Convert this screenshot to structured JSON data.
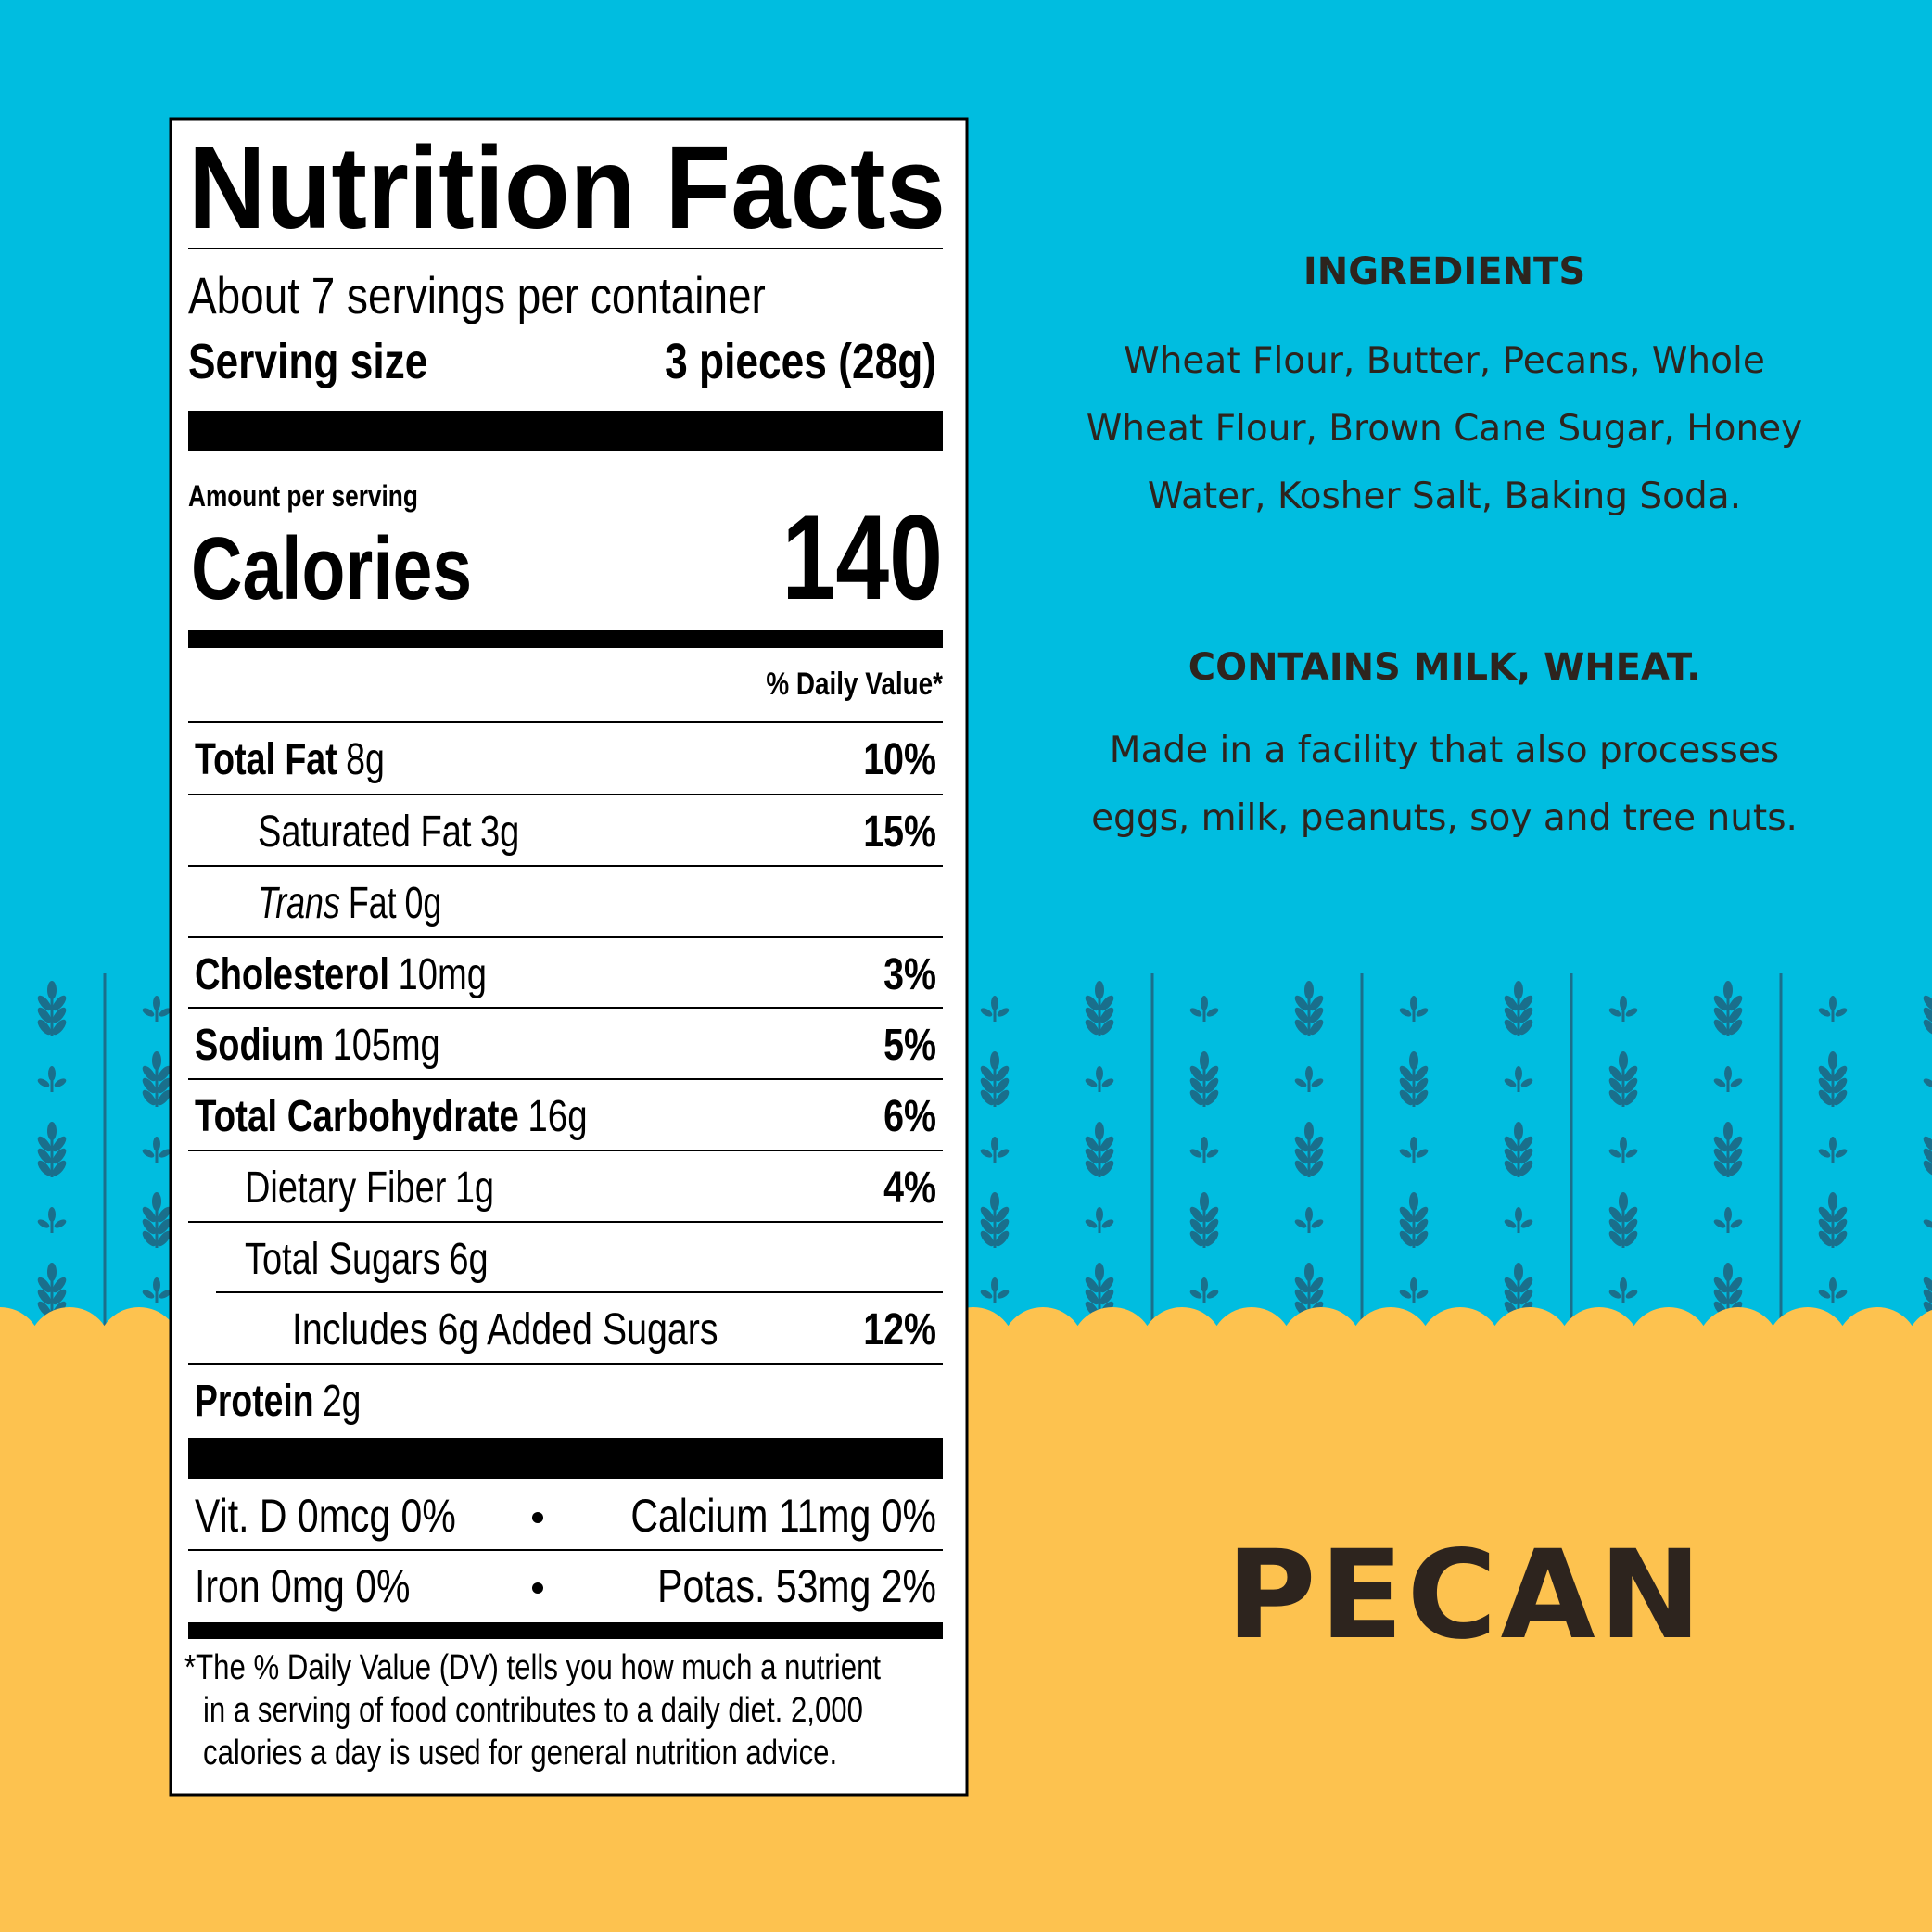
{
  "label": {
    "title": "Nutrition Facts",
    "servings": "About 7 servings per container",
    "serving_size_label": "Serving size",
    "serving_size": "3 pieces (28g)",
    "amount_per_serving": "Amount per serving",
    "calories_label": "Calories",
    "calories": 140,
    "daily_value_header": "% Daily Value*",
    "rows": [
      {
        "name": "Total Fat",
        "amount": "8g",
        "dv": "10%"
      },
      {
        "name": "Saturated Fat",
        "amount": "3g",
        "dv": "15%"
      },
      {
        "name_italic": "Trans",
        "name": "Fat",
        "amount": "0g"
      },
      {
        "name": "Cholesterol",
        "amount": "10mg",
        "dv": "3%"
      },
      {
        "name": "Sodium",
        "amount": "105mg",
        "dv": "5%"
      },
      {
        "name": "Total Carbohydrate",
        "amount": "16g",
        "dv": "6%"
      },
      {
        "name": "Dietary Fiber",
        "amount": "1g",
        "dv": "4%"
      },
      {
        "name": "Total Sugars",
        "amount": "6g"
      },
      {
        "name": "Includes 6g Added Sugars",
        "dv": "12%"
      },
      {
        "name": "Protein",
        "amount": "2g"
      }
    ],
    "vitamins": [
      [
        "Vit. D 0mcg 0%",
        "Calcium 11mg 0%"
      ],
      [
        "Iron 0mg 0%",
        "Potas. 53mg 2%"
      ]
    ],
    "footnote": [
      "*The % Daily Value (DV) tells you how much a nutrient",
      "in a serving of food contributes to a daily diet. 2,000",
      "calories a day is used for general nutrition advice."
    ]
  },
  "ingredients": {
    "heading": "INGREDIENTS",
    "lines": [
      "Wheat Flour, Butter, Pecans, Whole",
      "Wheat Flour, Brown Cane Sugar, Honey",
      "Water, Kosher Salt, Baking Soda."
    ]
  },
  "allergens": {
    "heading": "CONTAINS MILK, WHEAT.",
    "lines": [
      "Made in a facility that also processes",
      "eggs, milk, peanuts, soy and tree nuts."
    ]
  },
  "flavor": "PECAN"
}
